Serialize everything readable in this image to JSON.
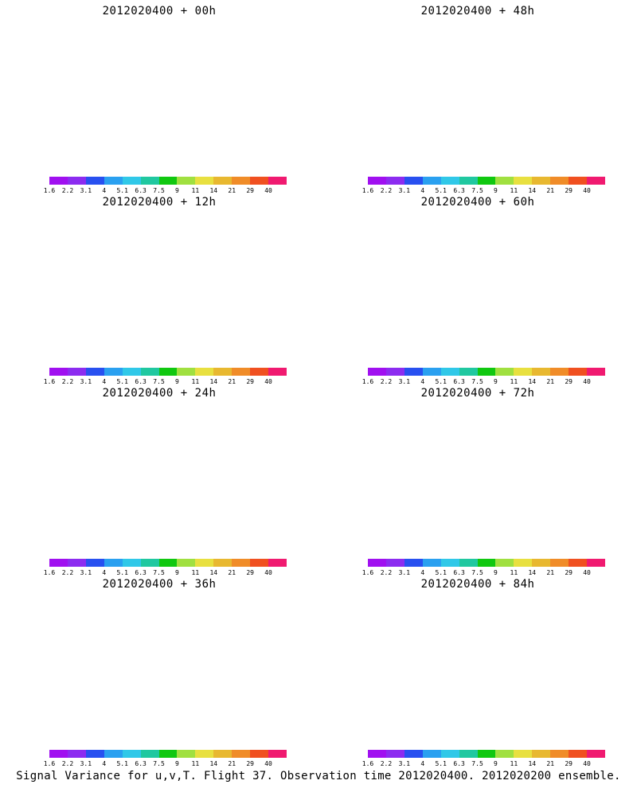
{
  "panels": [
    {
      "title": "2012020400 + 00h",
      "intensity": 0.15
    },
    {
      "title": "2012020400 + 48h",
      "intensity": 0.65
    },
    {
      "title": "2012020400 + 12h",
      "intensity": 0.25
    },
    {
      "title": "2012020400 + 60h",
      "intensity": 0.72
    },
    {
      "title": "2012020400 + 24h",
      "intensity": 0.35
    },
    {
      "title": "2012020400 + 72h",
      "intensity": 0.8
    },
    {
      "title": "2012020400 + 36h",
      "intensity": 0.45
    },
    {
      "title": "2012020400 + 84h",
      "intensity": 0.88
    }
  ],
  "colorbar": {
    "colors": [
      "#a010f0",
      "#8c2cf0",
      "#2850f0",
      "#2aa0f0",
      "#30c8e8",
      "#20c8a0",
      "#10c810",
      "#a0e040",
      "#e8e040",
      "#e8b830",
      "#f08c28",
      "#f05020",
      "#f01a70"
    ],
    "labels": [
      "1.6",
      "2.2",
      "3.1",
      "4",
      "5.1",
      "6.3",
      "7.5",
      "9",
      "11",
      "14",
      "21",
      "29",
      "40"
    ]
  },
  "caption": "Signal Variance for u,v,T. Flight 37. Observation time 2012020400. 2012020200 ensemble."
}
